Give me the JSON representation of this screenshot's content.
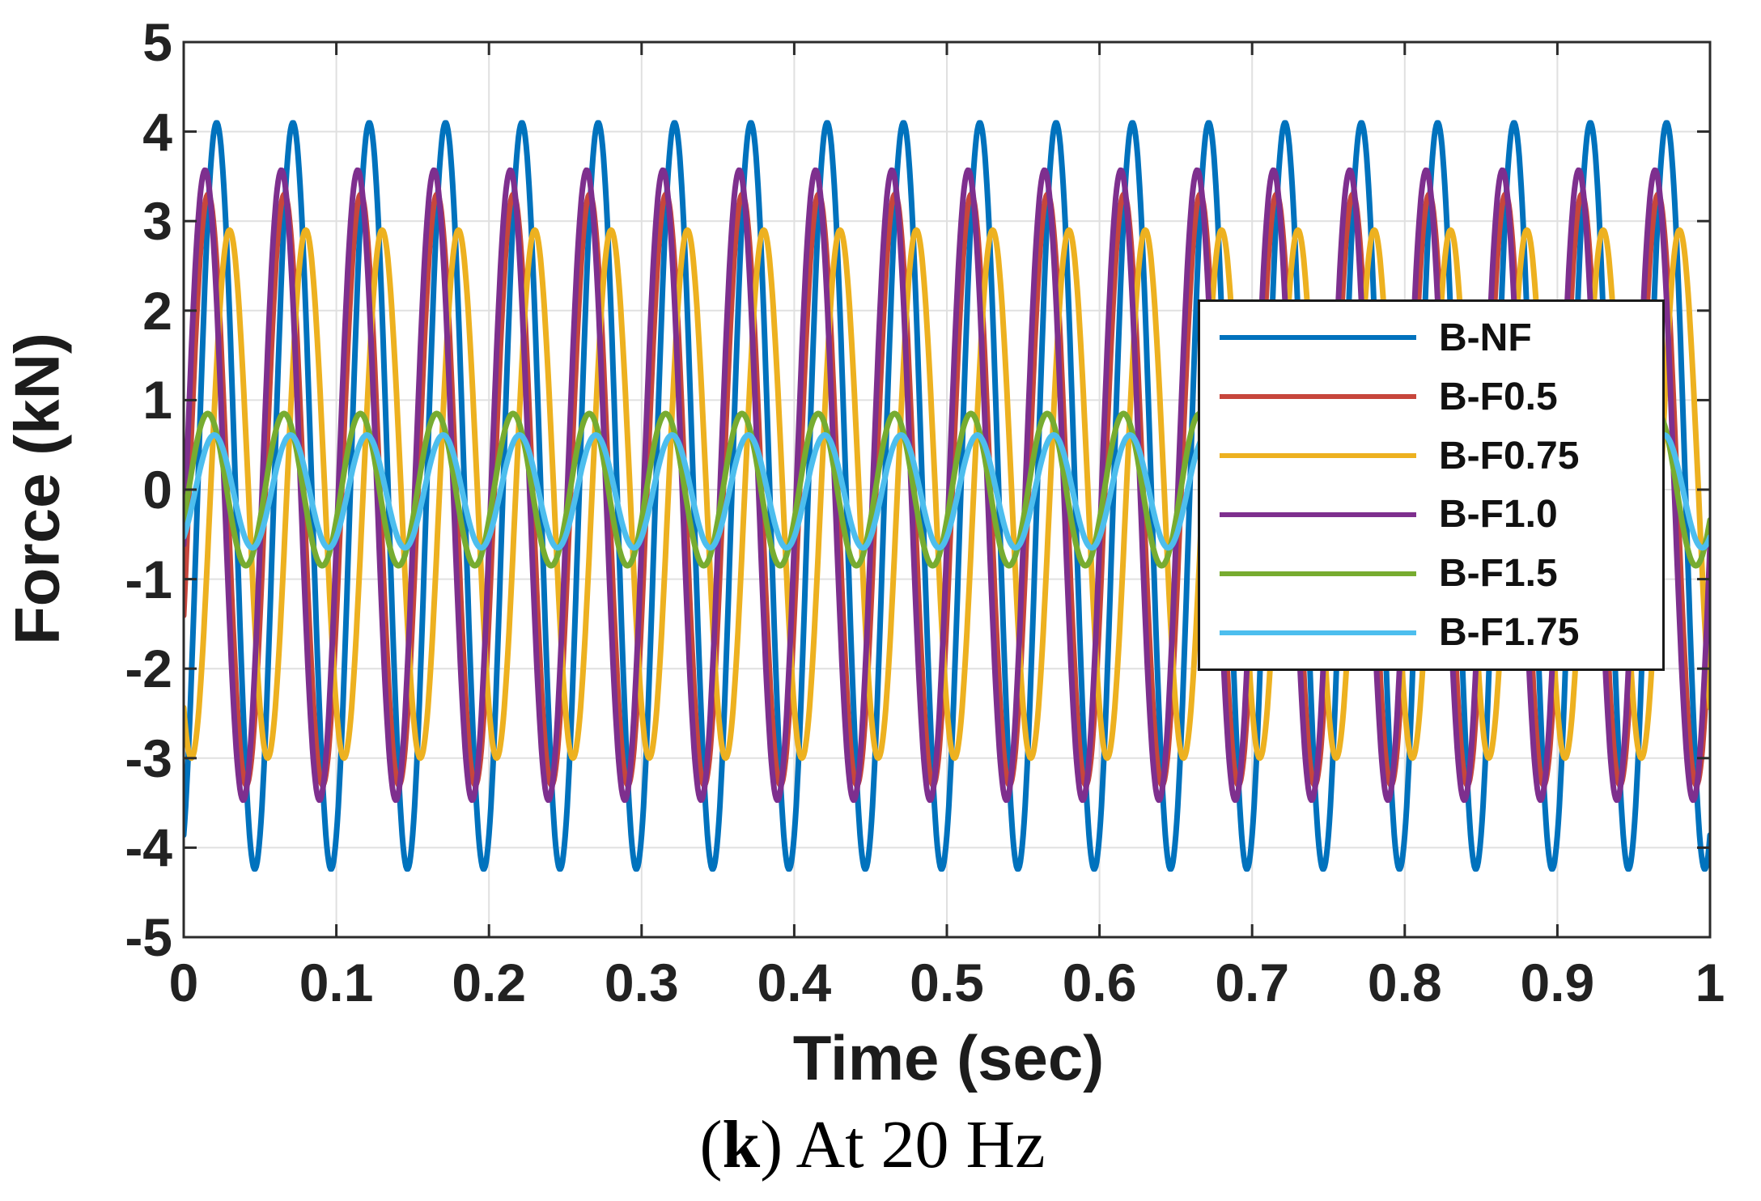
{
  "figure": {
    "background": "#ffffff",
    "axis_color": "#2b2b2b",
    "grid_color": "#e0e0e0",
    "text_color": "#1c1c1c"
  },
  "caption": {
    "open_paren": "(",
    "bold_letter": "k",
    "close_paren": ")",
    "text": " At 20 Hz"
  },
  "chart_data": {
    "type": "line",
    "title": "",
    "xlabel": "Time (sec)",
    "ylabel": "Force (kN)",
    "xlim": [
      0,
      1
    ],
    "ylim": [
      -5,
      5
    ],
    "x_ticks": [
      0,
      0.1,
      0.2,
      0.3,
      0.4,
      0.5,
      0.6,
      0.7,
      0.8,
      0.9,
      1
    ],
    "x_tick_labels": [
      "0",
      "0.1",
      "0.2",
      "0.3",
      "0.4",
      "0.5",
      "0.6",
      "0.7",
      "0.8",
      "0.9",
      "1"
    ],
    "y_ticks": [
      5,
      4,
      3,
      2,
      1,
      0,
      -1,
      -2,
      -3,
      -4,
      -5
    ],
    "y_tick_labels": [
      "5",
      "4",
      "3",
      "2",
      "1",
      "0",
      "-1",
      "-2",
      "-3",
      "-4",
      "-5"
    ],
    "grid": true,
    "legend_position": "upper-right-inside",
    "waveform": "sine",
    "frequency_hz": 20,
    "series": [
      {
        "name": "B-NF",
        "color": "#0072BD",
        "amplitude_kN": 4.17,
        "offset_kN": -0.07,
        "phase_rad": -1.14,
        "peak_kN": 4.1,
        "trough_kN": -4.24
      },
      {
        "name": "B-F0.5",
        "color": "#C7463C",
        "amplitude_kN": 3.3,
        "offset_kN": 0.0,
        "phase_rad": -0.44,
        "peak_kN": 3.3,
        "trough_kN": -3.3
      },
      {
        "name": "B-F0.75",
        "color": "#EDB120",
        "amplitude_kN": 2.95,
        "offset_kN": -0.05,
        "phase_rad": -2.2,
        "peak_kN": 2.9,
        "trough_kN": -3.0
      },
      {
        "name": "B-F1.0",
        "color": "#7E2F8E",
        "amplitude_kN": 3.52,
        "offset_kN": 0.05,
        "phase_rad": -0.19,
        "peak_kN": 3.57,
        "trough_kN": -3.47
      },
      {
        "name": "B-F1.5",
        "color": "#77AC30",
        "amplitude_kN": 0.85,
        "offset_kN": 0.0,
        "phase_rad": -0.41,
        "peak_kN": 0.85,
        "trough_kN": -0.85
      },
      {
        "name": "B-F1.75",
        "color": "#4DBEEE",
        "amplitude_kN": 0.63,
        "offset_kN": -0.02,
        "phase_rad": -0.94,
        "peak_kN": 0.61,
        "trough_kN": -0.65
      }
    ]
  }
}
